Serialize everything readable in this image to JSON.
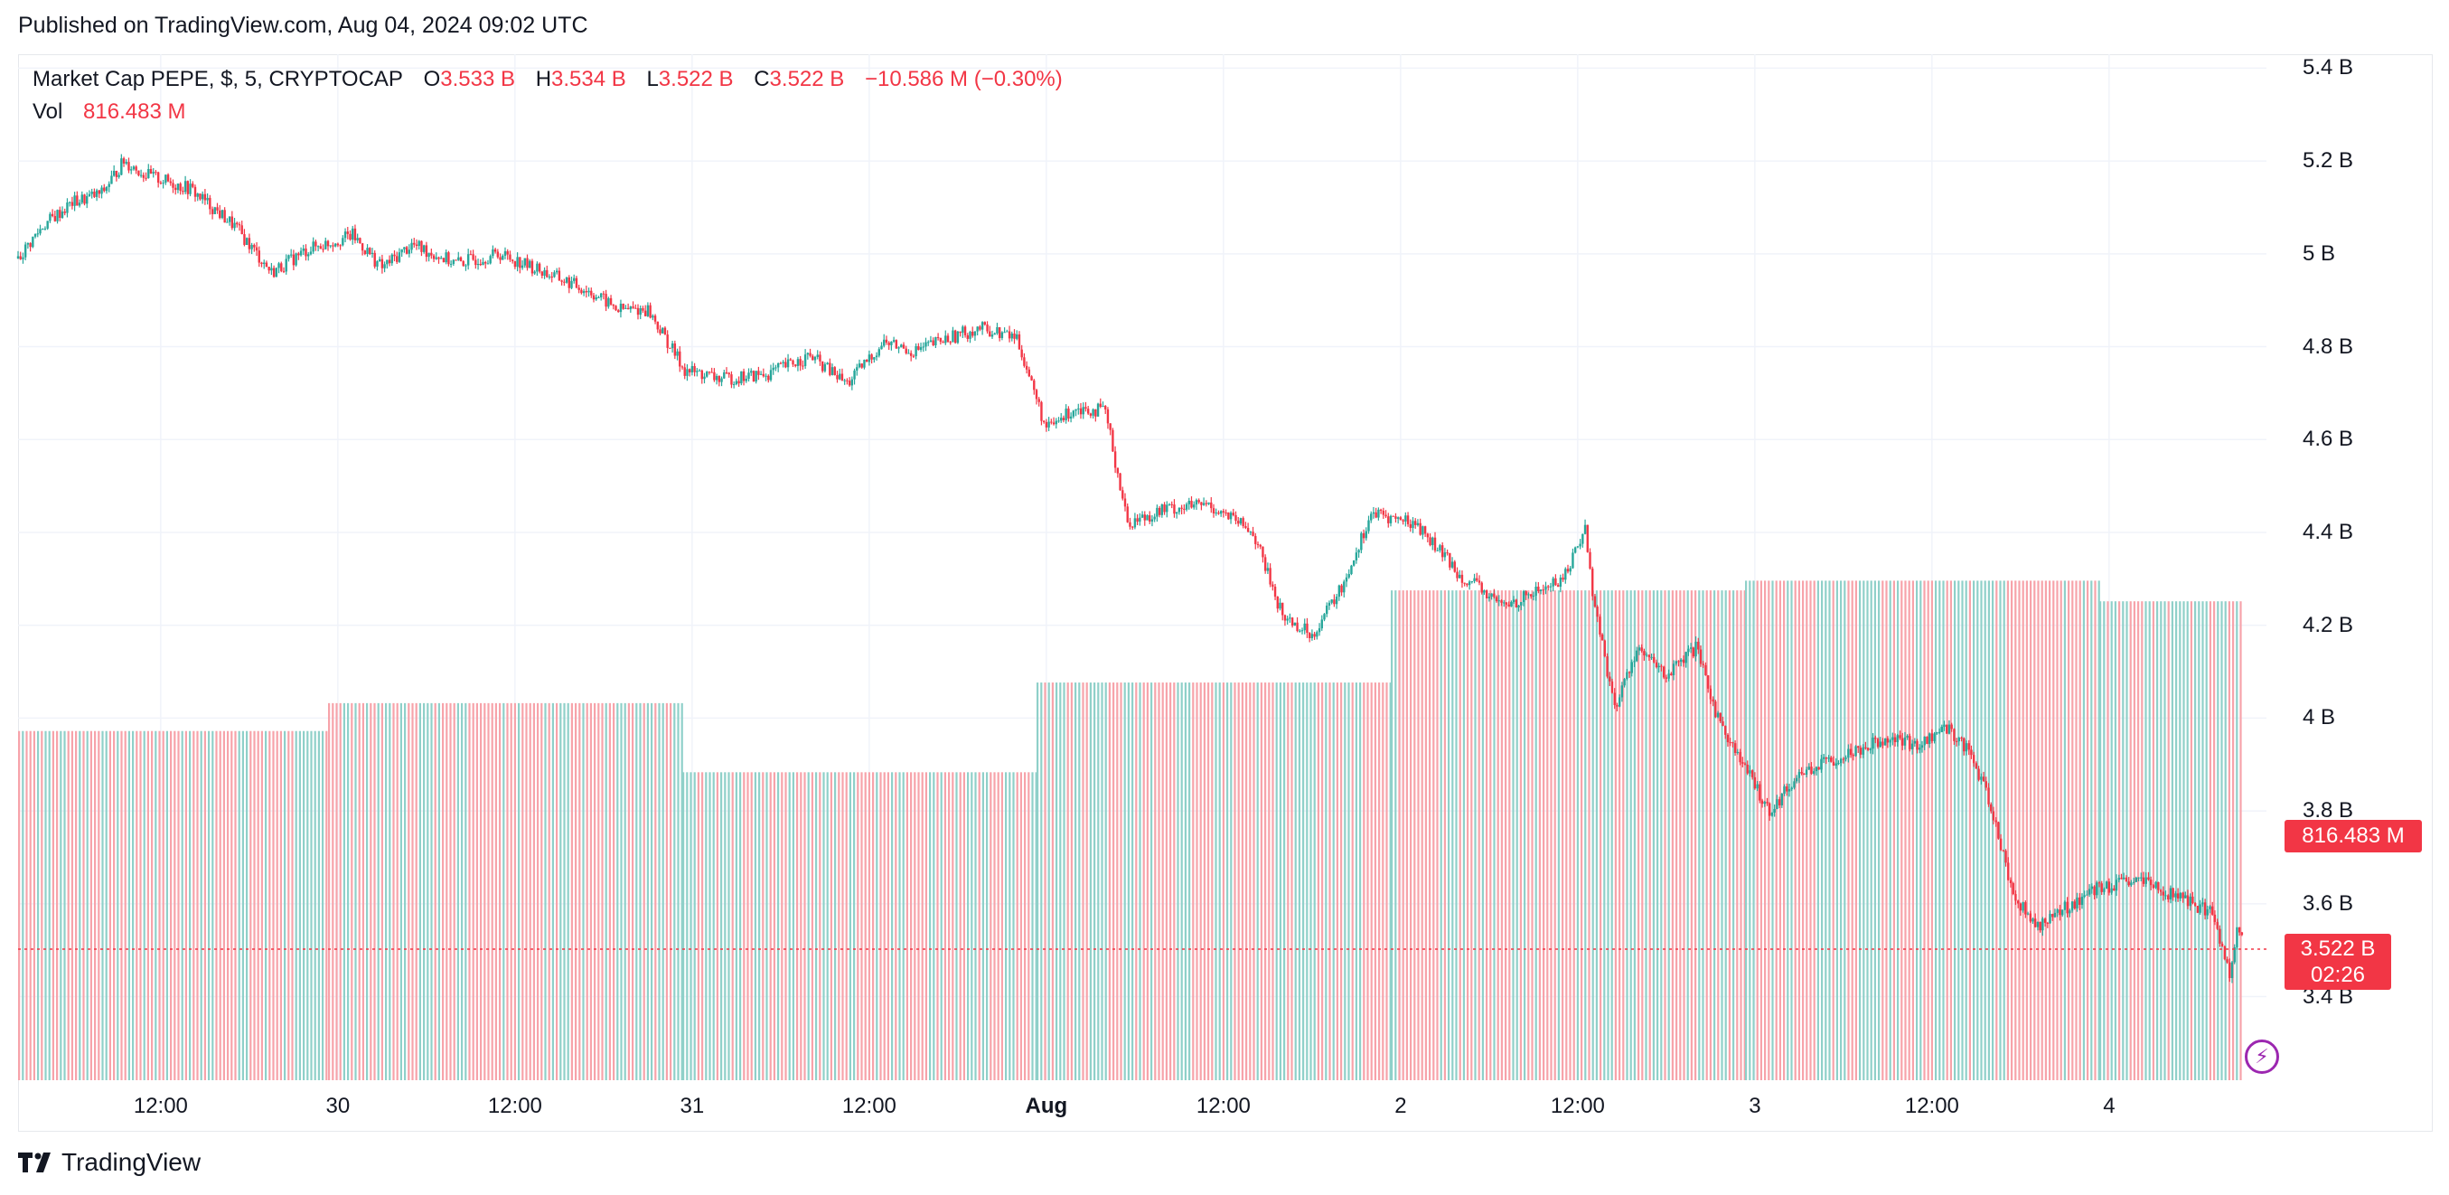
{
  "published": "Published on TradingView.com, Aug 04, 2024 09:02 UTC",
  "legend": {
    "symbol": "Market Cap PEPE, $, 5, CRYPTOCAP",
    "o_label": "O",
    "o_value": "3.533 B",
    "h_label": "H",
    "h_value": "3.534 B",
    "l_label": "L",
    "l_value": "3.522 B",
    "c_label": "C",
    "c_value": "3.522 B",
    "change": "−10.586 M (−0.30%)",
    "vol_label": "Vol",
    "vol_value": "816.483 M"
  },
  "y_ticks": [
    "5.4 B",
    "5.2 B",
    "5 B",
    "4.8 B",
    "4.6 B",
    "4.4 B",
    "4.2 B",
    "4 B",
    "3.8 B",
    "3.6 B",
    "3.4 B"
  ],
  "x_ticks": [
    "12:00",
    "30",
    "12:00",
    "31",
    "12:00",
    "Aug",
    "12:00",
    "2",
    "12:00",
    "3",
    "12:00",
    "4"
  ],
  "price_tag": {
    "value": "3.522 B",
    "countdown": "02:26"
  },
  "vol_tag": "816.483 M",
  "brand": "TradingView",
  "colors": {
    "up": "#26a69a",
    "down": "#f23645",
    "vol_up": "#8fd0c9",
    "vol_down": "#f7a3aa",
    "grid": "#f0f3fa"
  },
  "chart_data": {
    "type": "candlestick",
    "title": "Market Cap PEPE, $, 5, CRYPTOCAP",
    "interval": "5",
    "y_unit": "B",
    "ylim": [
      3.22,
      5.43
    ],
    "x_range": [
      "Jul 29 ~02:20",
      "Aug 4 09:05"
    ],
    "price_series": [
      [
        "Jul 29 02:20",
        4.99
      ],
      [
        "Jul 29 04:00",
        5.06
      ],
      [
        "Jul 29 06:00",
        5.11
      ],
      [
        "Jul 29 08:00",
        5.13
      ],
      [
        "Jul 29 09:30",
        5.2
      ],
      [
        "Jul 29 11:00",
        5.17
      ],
      [
        "Jul 29 14:00",
        5.14
      ],
      [
        "Jul 29 17:00",
        5.06
      ],
      [
        "Jul 29 19:30",
        4.96
      ],
      [
        "Jul 29 22:00",
        5.01
      ],
      [
        "Jul 30 01:00",
        5.04
      ],
      [
        "Jul 30 03:00",
        4.97
      ],
      [
        "Jul 30 05:00",
        5.02
      ],
      [
        "Jul 30 08:00",
        4.98
      ],
      [
        "Jul 30 11:00",
        5.0
      ],
      [
        "Jul 30 14:00",
        4.96
      ],
      [
        "Jul 30 17:00",
        4.92
      ],
      [
        "Jul 30 19:00",
        4.88
      ],
      [
        "Jul 30 21:00",
        4.88
      ],
      [
        "Jul 30 23:30",
        4.75
      ],
      [
        "Jul 31 02:00",
        4.73
      ],
      [
        "Jul 31 05:00",
        4.74
      ],
      [
        "Jul 31 08:00",
        4.78
      ],
      [
        "Jul 31 10:30",
        4.72
      ],
      [
        "Jul 31 13:00",
        4.81
      ],
      [
        "Jul 31 15:00",
        4.79
      ],
      [
        "Jul 31 17:30",
        4.82
      ],
      [
        "Jul 31 19:30",
        4.84
      ],
      [
        "Jul 31 22:00",
        4.82
      ],
      [
        "Aug 1 00:00",
        4.62
      ],
      [
        "Aug 1 02:00",
        4.67
      ],
      [
        "Aug 1 04:00",
        4.66
      ],
      [
        "Aug 1 05:30",
        4.42
      ],
      [
        "Aug 1 08:00",
        4.45
      ],
      [
        "Aug 1 11:00",
        4.46
      ],
      [
        "Aug 1 14:00",
        4.4
      ],
      [
        "Aug 1 16:00",
        4.22
      ],
      [
        "Aug 1 18:00",
        4.18
      ],
      [
        "Aug 1 20:00",
        4.28
      ],
      [
        "Aug 1 22:00",
        4.44
      ],
      [
        "Aug 2 01:00",
        4.42
      ],
      [
        "Aug 2 04:00",
        4.31
      ],
      [
        "Aug 2 07:00",
        4.24
      ],
      [
        "Aug 2 09:00",
        4.27
      ],
      [
        "Aug 2 11:00",
        4.3
      ],
      [
        "Aug 2 12:30",
        4.41
      ],
      [
        "Aug 2 13:00",
        4.27
      ],
      [
        "Aug 2 14:30",
        4.02
      ],
      [
        "Aug 2 16:00",
        4.15
      ],
      [
        "Aug 2 18:00",
        4.09
      ],
      [
        "Aug 2 20:00",
        4.15
      ],
      [
        "Aug 2 21:30",
        4.0
      ],
      [
        "Aug 2 23:00",
        3.91
      ],
      [
        "Aug 3 01:00",
        3.8
      ],
      [
        "Aug 3 03:00",
        3.88
      ],
      [
        "Aug 3 06:00",
        3.92
      ],
      [
        "Aug 3 09:00",
        3.96
      ],
      [
        "Aug 3 11:00",
        3.94
      ],
      [
        "Aug 3 13:00",
        3.98
      ],
      [
        "Aug 3 14:30",
        3.93
      ],
      [
        "Aug 3 16:00",
        3.81
      ],
      [
        "Aug 3 17:30",
        3.62
      ],
      [
        "Aug 3 19:00",
        3.55
      ],
      [
        "Aug 3 21:00",
        3.59
      ],
      [
        "Aug 3 23:00",
        3.63
      ],
      [
        "Aug 4 02:00",
        3.65
      ],
      [
        "Aug 4 05:00",
        3.61
      ],
      [
        "Aug 4 07:00",
        3.58
      ],
      [
        "Aug 4 08:10",
        3.45
      ],
      [
        "Aug 4 08:40",
        3.55
      ],
      [
        "Aug 4 09:00",
        3.522
      ]
    ],
    "volume_series": [
      {
        "period": "Jul 29",
        "volume_b": 2.88
      },
      {
        "period": "Jul 30",
        "volume_b": 3.11
      },
      {
        "period": "Jul 31",
        "volume_b": 2.54
      },
      {
        "period": "Aug 1",
        "volume_b": 3.28
      },
      {
        "period": "Aug 2",
        "volume_b": 4.04
      },
      {
        "period": "Aug 3",
        "volume_b": 4.12
      },
      {
        "period": "Aug 4",
        "volume_b": 3.95
      }
    ],
    "last_price": "3.522 B",
    "last_volume": "816.483 M"
  }
}
